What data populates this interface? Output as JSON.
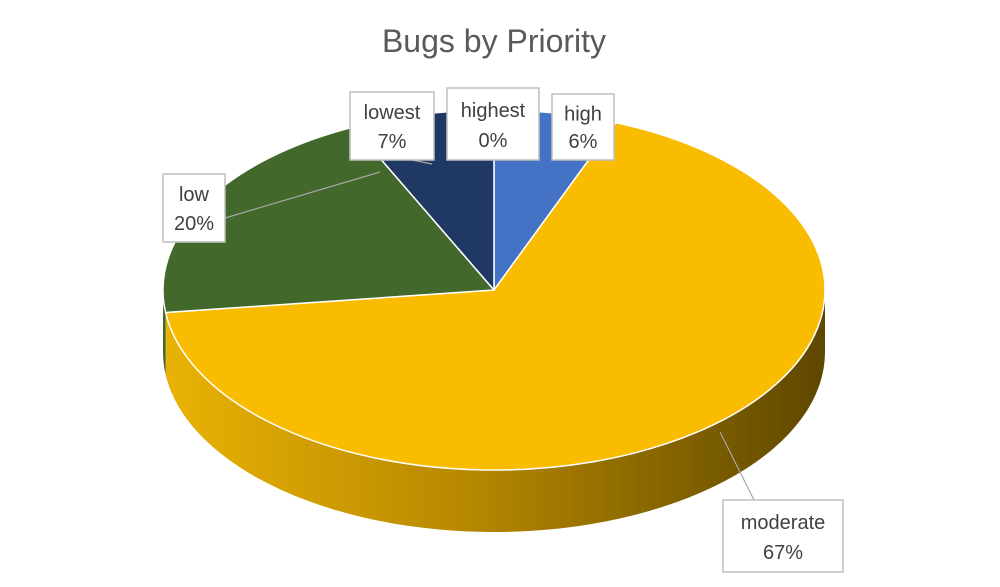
{
  "chart_data": {
    "type": "pie",
    "title": "Bugs by Priority",
    "slices": [
      {
        "name": "high",
        "value": 6,
        "label": "6%",
        "color": "#4472C4"
      },
      {
        "name": "moderate",
        "value": 67,
        "label": "67%",
        "color": "#F9BC00"
      },
      {
        "name": "low",
        "value": 20,
        "label": "20%",
        "color": "#43682B"
      },
      {
        "name": "lowest",
        "value": 7,
        "label": "7%",
        "color": "#203864"
      },
      {
        "name": "highest",
        "value": 0,
        "label": "0%",
        "color": "#2E75B6"
      }
    ],
    "style": "3d",
    "legend": "none",
    "data_labels": "category-and-percent"
  }
}
